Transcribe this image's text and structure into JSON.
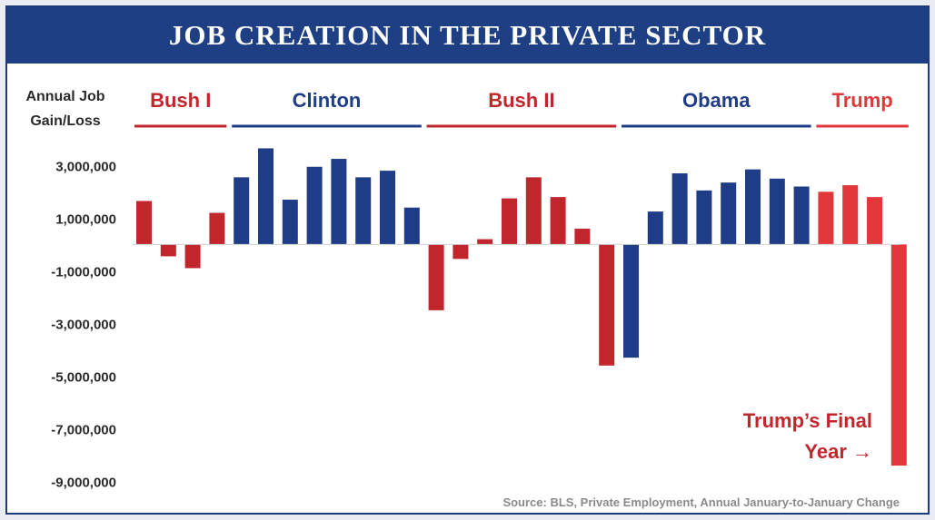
{
  "chart_data": {
    "type": "bar",
    "title": "JOB CREATION IN THE PRIVATE SECTOR",
    "ylabel": "Annual Job Gain/Loss",
    "ylim": [
      -9500000,
      3700000
    ],
    "yticks": [
      3000000,
      1000000,
      -1000000,
      -3000000,
      -5000000,
      -7000000,
      -9000000
    ],
    "ytick_labels": [
      "3,000,000",
      "1,000,000",
      "-1,000,000",
      "-3,000,000",
      "-5,000,000",
      "-7,000,000",
      "-9,000,000"
    ],
    "groups": [
      {
        "name": "Bush I",
        "color": "#c0262b",
        "values": [
          1650000,
          -450000,
          -900000,
          1200000
        ]
      },
      {
        "name": "Clinton",
        "color": "#1f3c86",
        "values": [
          2550000,
          3650000,
          1700000,
          2950000,
          3250000,
          2550000,
          2800000,
          1400000
        ]
      },
      {
        "name": "Bush II",
        "color": "#c0262b",
        "values": [
          -2500000,
          -550000,
          200000,
          1750000,
          2550000,
          1800000,
          600000,
          -4600000
        ]
      },
      {
        "name": "Obama",
        "color": "#1f3c86",
        "values": [
          -4300000,
          1250000,
          2700000,
          2050000,
          2350000,
          2850000,
          2500000,
          2200000
        ]
      },
      {
        "name": "Trump",
        "color": "#e2373b",
        "values": [
          2000000,
          2250000,
          1800000,
          -8400000
        ]
      }
    ],
    "annotation": "Trump’s Final Year →",
    "annotation_lines": [
      "Trump’s Final",
      "Year →"
    ],
    "annotation_color": "#c0262b",
    "source": "Source: BLS, Private Employment, Annual January-to-January Change"
  },
  "ylabel_lines": [
    "Annual Job",
    "Gain/Loss"
  ],
  "colors": {
    "header_bg": "#1e3f84",
    "republican": "#c0262b",
    "democrat": "#1f3c86",
    "trump": "#e2373b",
    "axis_text": "#2a2a2a",
    "source_text": "#8a8a8a"
  }
}
